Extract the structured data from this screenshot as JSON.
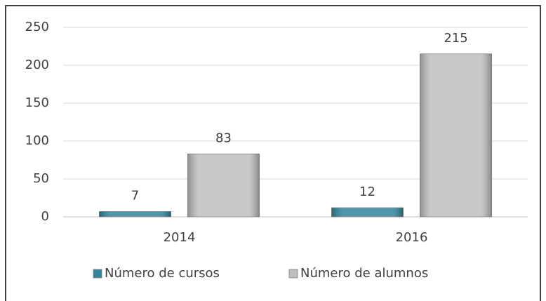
{
  "chart_data": {
    "type": "bar",
    "categories": [
      "2014",
      "2016"
    ],
    "series": [
      {
        "name": "Número de cursos",
        "color": "#31859c",
        "values": [
          7,
          12
        ]
      },
      {
        "name": "Número de alumnos",
        "color": "#bfbfbf",
        "values": [
          83,
          215
        ]
      }
    ],
    "ylim": [
      0,
      250
    ],
    "yticks": [
      0,
      50,
      100,
      150,
      200,
      250
    ],
    "grid": true,
    "legend": "bottom"
  }
}
